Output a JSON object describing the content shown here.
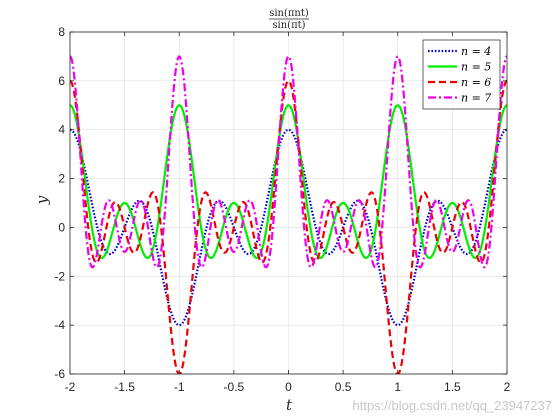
{
  "chart_data": {
    "type": "line",
    "title_num": "sin(πnt)",
    "title_den": "sin(πt)",
    "xlabel": "t",
    "ylabel": "y",
    "xlim": [
      -2,
      2
    ],
    "ylim": [
      -6,
      8
    ],
    "xticks": [
      -2,
      -1.5,
      -1,
      -0.5,
      0,
      0.5,
      1,
      1.5,
      2
    ],
    "xtick_labels": [
      "-2",
      "-1.5",
      "-1",
      "-0.5",
      "0",
      "0.5",
      "1",
      "1.5",
      "2"
    ],
    "yticks": [
      -6,
      -4,
      -2,
      0,
      2,
      4,
      6,
      8
    ],
    "ytick_labels": [
      "-6",
      "-4",
      "-2",
      "0",
      "2",
      "4",
      "6",
      "8"
    ],
    "grid": true,
    "legend_position": "top-right",
    "function": "sin(pi*n*t)/sin(pi*t)",
    "series": [
      {
        "name": "n = 4",
        "n": 4,
        "color": "#0000cc",
        "style": "dotted"
      },
      {
        "name": "n = 5",
        "n": 5,
        "color": "#00ee00",
        "style": "solid"
      },
      {
        "name": "n = 6",
        "n": 6,
        "color": "#ee0000",
        "style": "dashed"
      },
      {
        "name": "n = 7",
        "n": 7,
        "color": "#ee00ee",
        "style": "dashdot"
      }
    ]
  },
  "watermark": "https://blog.csdn.net/qq_23947237"
}
